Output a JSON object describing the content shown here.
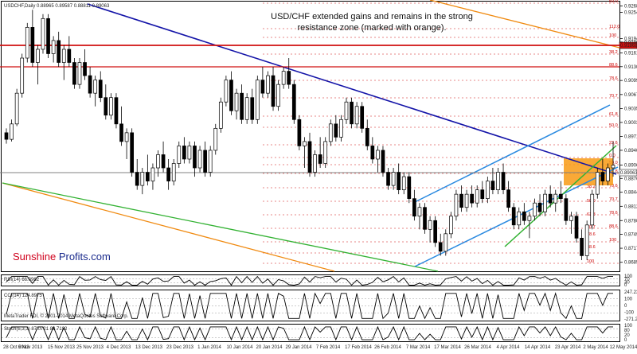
{
  "header": {
    "symbol_line": "USDCHF,Daily  0.88965 0.89587 0.88811 0.89063"
  },
  "annotation": {
    "line1": "USD/CHF extended gains and remains in the strong",
    "line2": "resistance zone (marked with orange)."
  },
  "brand": {
    "part1": "Sunshine",
    "part2": " Profits.com",
    "color1": "#d0001c",
    "color2": "#1a2a8c"
  },
  "footer": {
    "copyright": "MetaTrader FDI, © 2001-2014 MetaQuotes Software Corp."
  },
  "indicators": {
    "rsi_label": "RSI(14) 66.0962",
    "cci_label": "CCI(14) 124.8975",
    "stoch_label": "Stoch(5,3,3) 87.0721 88.7182",
    "rsi_levels": [
      "100",
      "70",
      "30",
      "0"
    ],
    "cci_levels": [
      "247.2312",
      "100",
      "0",
      "-100",
      "-271.2946"
    ],
    "stoch_levels": [
      "100",
      "80",
      "20",
      "0"
    ]
  },
  "colors": {
    "candle": "#000000",
    "blue_line": "#1414a8",
    "light_blue": "#2a8ae0",
    "green": "#33b233",
    "orange": "#f08a10",
    "red": "#d01010",
    "zone": "#f89a14"
  },
  "chart_data": {
    "type": "candlestick",
    "title": "USDCHF,Daily",
    "ohlc_last": {
      "open": 0.88965,
      "high": 0.89587,
      "low": 0.88811,
      "close": 0.89063
    },
    "y_ticks": [
      "0.92685",
      "0.92540",
      "0.91945",
      "0.91865",
      "0.91615",
      "0.91305",
      "0.90990",
      "0.90670",
      "0.90350",
      "0.90035",
      "0.89715",
      "0.89400",
      "0.89063",
      "0.88760",
      "0.88445",
      "0.88125",
      "0.87800",
      "0.87490",
      "0.87170",
      "0.86850"
    ],
    "x_ticks": [
      "28 Oct 2013",
      "6 Nov 2013",
      "15 Nov 2013",
      "25 Nov 2013",
      "4 Dec 2013",
      "13 Dec 2013",
      "23 Dec 2013",
      "1 Jan 2014",
      "10 Jan 2014",
      "20 Jan 2014",
      "29 Jan 2014",
      "7 Feb 2014",
      "17 Feb 2014",
      "26 Feb 2014",
      "7 Mar 2014",
      "17 Mar 2014",
      "26 Mar 2014",
      "4 Apr 2014",
      "14 Apr 2014",
      "23 Apr 2014",
      "2 May 2014",
      "12 May 2014"
    ],
    "resistance_levels": [
      {
        "value": "0.91868",
        "color": "#d01010"
      },
      {
        "value": "0.89063",
        "color": "#808080"
      }
    ],
    "fib_levels_right": [
      "50.0",
      "112.0",
      "100",
      "38.2",
      "88.6",
      "78.6",
      "70.7",
      "61.8",
      "50.0",
      "23.6",
      "0.0",
      "50.0",
      "61.8",
      "78.6",
      "70.7",
      "78.6",
      "88.6",
      "100"
    ],
    "fib_levels_mid": [
      "38.2",
      "50.0",
      "61.8",
      "70.7",
      "78.6",
      "88.6",
      "100"
    ],
    "rsi": 66.0962,
    "cci": 124.8975,
    "stoch": [
      87.0721,
      88.7182
    ],
    "series": [
      {
        "name": "",
        "values": [
          [
            0.898,
            0.899,
            0.8955,
            0.8965
          ],
          [
            0.8965,
            0.901,
            0.896,
            0.9
          ],
          [
            0.9,
            0.908,
            0.8995,
            0.907
          ],
          [
            0.907,
            0.916,
            0.906,
            0.915
          ],
          [
            0.915,
            0.923,
            0.914,
            0.922
          ],
          [
            0.922,
            0.926,
            0.913,
            0.914
          ],
          [
            0.914,
            0.918,
            0.909,
            0.917
          ],
          [
            0.917,
            0.925,
            0.916,
            0.924
          ],
          [
            0.924,
            0.925,
            0.915,
            0.916
          ],
          [
            0.916,
            0.92,
            0.914,
            0.919
          ],
          [
            0.919,
            0.921,
            0.913,
            0.914
          ],
          [
            0.914,
            0.918,
            0.91,
            0.917
          ],
          [
            0.917,
            0.92,
            0.913,
            0.914
          ],
          [
            0.914,
            0.915,
            0.908,
            0.909
          ],
          [
            0.909,
            0.915,
            0.908,
            0.914
          ],
          [
            0.914,
            0.917,
            0.91,
            0.911
          ],
          [
            0.911,
            0.913,
            0.906,
            0.907
          ],
          [
            0.907,
            0.911,
            0.904,
            0.91
          ],
          [
            0.91,
            0.912,
            0.905,
            0.906
          ],
          [
            0.906,
            0.909,
            0.901,
            0.902
          ],
          [
            0.902,
            0.907,
            0.901,
            0.906
          ],
          [
            0.906,
            0.907,
            0.899,
            0.9
          ],
          [
            0.9,
            0.904,
            0.895,
            0.896
          ],
          [
            0.896,
            0.899,
            0.892,
            0.898
          ],
          [
            0.898,
            0.899,
            0.888,
            0.889
          ],
          [
            0.889,
            0.892,
            0.885,
            0.886
          ],
          [
            0.886,
            0.89,
            0.884,
            0.889
          ],
          [
            0.889,
            0.893,
            0.886,
            0.887
          ],
          [
            0.887,
            0.891,
            0.885,
            0.89
          ],
          [
            0.89,
            0.894,
            0.888,
            0.893
          ],
          [
            0.893,
            0.896,
            0.889,
            0.89
          ],
          [
            0.89,
            0.892,
            0.885,
            0.887
          ],
          [
            0.887,
            0.892,
            0.886,
            0.891
          ],
          [
            0.891,
            0.896,
            0.89,
            0.895
          ],
          [
            0.895,
            0.897,
            0.891,
            0.892
          ],
          [
            0.892,
            0.896,
            0.891,
            0.895
          ],
          [
            0.895,
            0.896,
            0.888,
            0.89
          ],
          [
            0.89,
            0.895,
            0.889,
            0.894
          ],
          [
            0.894,
            0.896,
            0.888,
            0.889
          ],
          [
            0.889,
            0.895,
            0.888,
            0.894
          ],
          [
            0.894,
            0.9,
            0.893,
            0.899
          ],
          [
            0.899,
            0.906,
            0.898,
            0.905
          ],
          [
            0.905,
            0.911,
            0.904,
            0.91
          ],
          [
            0.91,
            0.912,
            0.902,
            0.903
          ],
          [
            0.903,
            0.908,
            0.901,
            0.907
          ],
          [
            0.907,
            0.909,
            0.9,
            0.901
          ],
          [
            0.901,
            0.907,
            0.9,
            0.906
          ],
          [
            0.906,
            0.908,
            0.9,
            0.901
          ],
          [
            0.901,
            0.911,
            0.9,
            0.91
          ],
          [
            0.91,
            0.913,
            0.906,
            0.907
          ],
          [
            0.907,
            0.912,
            0.906,
            0.911
          ],
          [
            0.911,
            0.913,
            0.903,
            0.904
          ],
          [
            0.904,
            0.91,
            0.903,
            0.909
          ],
          [
            0.909,
            0.913,
            0.908,
            0.912
          ],
          [
            0.912,
            0.915,
            0.908,
            0.909
          ],
          [
            0.909,
            0.91,
            0.9,
            0.901
          ],
          [
            0.901,
            0.902,
            0.894,
            0.895
          ],
          [
            0.895,
            0.897,
            0.89,
            0.896
          ],
          [
            0.896,
            0.898,
            0.888,
            0.889
          ],
          [
            0.889,
            0.894,
            0.888,
            0.893
          ],
          [
            0.893,
            0.897,
            0.89,
            0.891
          ],
          [
            0.891,
            0.897,
            0.89,
            0.896
          ],
          [
            0.896,
            0.901,
            0.895,
            0.9
          ],
          [
            0.9,
            0.902,
            0.896,
            0.897
          ],
          [
            0.897,
            0.902,
            0.896,
            0.901
          ],
          [
            0.901,
            0.906,
            0.9,
            0.905
          ],
          [
            0.905,
            0.906,
            0.899,
            0.9
          ],
          [
            0.9,
            0.905,
            0.899,
            0.904
          ],
          [
            0.904,
            0.905,
            0.898,
            0.899
          ],
          [
            0.899,
            0.901,
            0.894,
            0.895
          ],
          [
            0.895,
            0.897,
            0.891,
            0.892
          ],
          [
            0.892,
            0.895,
            0.889,
            0.894
          ],
          [
            0.894,
            0.895,
            0.888,
            0.889
          ],
          [
            0.889,
            0.89,
            0.885,
            0.886
          ],
          [
            0.886,
            0.89,
            0.885,
            0.889
          ],
          [
            0.889,
            0.891,
            0.884,
            0.885
          ],
          [
            0.885,
            0.889,
            0.884,
            0.888
          ],
          [
            0.888,
            0.889,
            0.882,
            0.883
          ],
          [
            0.883,
            0.885,
            0.878,
            0.879
          ],
          [
            0.879,
            0.882,
            0.876,
            0.881
          ],
          [
            0.881,
            0.882,
            0.875,
            0.876
          ],
          [
            0.876,
            0.879,
            0.873,
            0.878
          ],
          [
            0.878,
            0.879,
            0.872,
            0.873
          ],
          [
            0.873,
            0.875,
            0.87,
            0.871
          ],
          [
            0.871,
            0.876,
            0.87,
            0.875
          ],
          [
            0.875,
            0.88,
            0.874,
            0.879
          ],
          [
            0.879,
            0.885,
            0.878,
            0.884
          ],
          [
            0.884,
            0.886,
            0.88,
            0.881
          ],
          [
            0.881,
            0.885,
            0.88,
            0.884
          ],
          [
            0.884,
            0.886,
            0.881,
            0.882
          ],
          [
            0.882,
            0.886,
            0.881,
            0.885
          ],
          [
            0.885,
            0.887,
            0.882,
            0.883
          ],
          [
            0.883,
            0.888,
            0.882,
            0.887
          ],
          [
            0.887,
            0.89,
            0.884,
            0.885
          ],
          [
            0.885,
            0.89,
            0.884,
            0.889
          ],
          [
            0.889,
            0.891,
            0.884,
            0.885
          ],
          [
            0.885,
            0.887,
            0.88,
            0.881
          ],
          [
            0.881,
            0.882,
            0.876,
            0.877
          ],
          [
            0.877,
            0.881,
            0.876,
            0.88
          ],
          [
            0.88,
            0.882,
            0.877,
            0.878
          ],
          [
            0.878,
            0.88,
            0.874,
            0.879
          ],
          [
            0.879,
            0.883,
            0.878,
            0.882
          ],
          [
            0.882,
            0.884,
            0.879,
            0.88
          ],
          [
            0.88,
            0.885,
            0.879,
            0.884
          ],
          [
            0.884,
            0.886,
            0.881,
            0.882
          ],
          [
            0.882,
            0.885,
            0.88,
            0.884
          ],
          [
            0.884,
            0.887,
            0.882,
            0.883
          ],
          [
            0.883,
            0.884,
            0.877,
            0.878
          ],
          [
            0.878,
            0.88,
            0.875,
            0.879
          ],
          [
            0.879,
            0.88,
            0.873,
            0.874
          ],
          [
            0.874,
            0.876,
            0.869,
            0.87
          ],
          [
            0.87,
            0.878,
            0.869,
            0.877
          ],
          [
            0.877,
            0.885,
            0.876,
            0.884
          ],
          [
            0.884,
            0.89,
            0.883,
            0.889
          ],
          [
            0.889,
            0.892,
            0.886,
            0.887
          ],
          [
            0.887,
            0.891,
            0.886,
            0.89
          ],
          [
            0.89,
            0.896,
            0.888,
            0.8906
          ]
        ]
      }
    ]
  }
}
